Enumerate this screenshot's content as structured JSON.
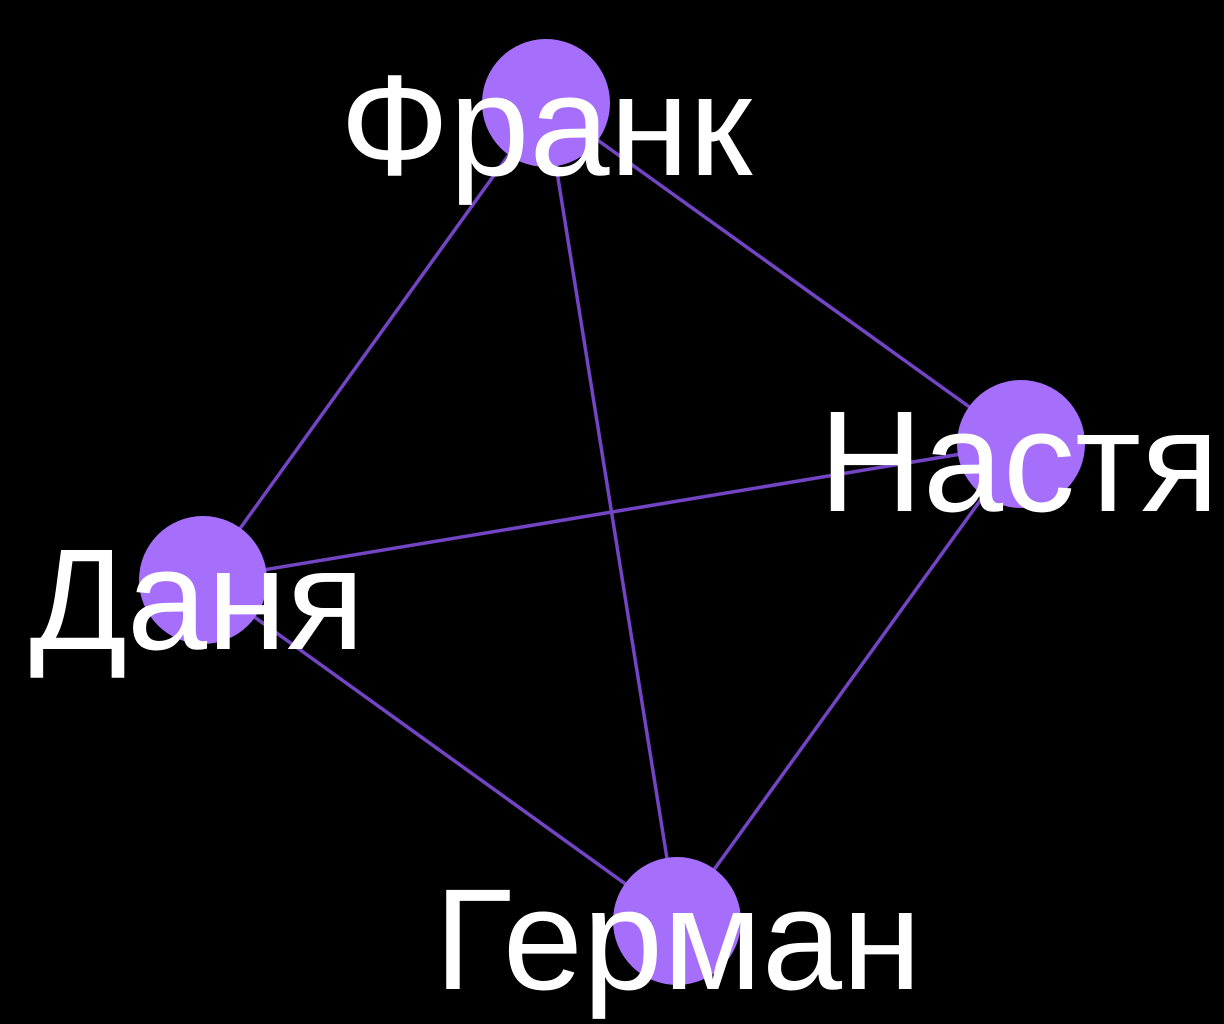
{
  "graph": {
    "node_color": "#a66ffb",
    "edge_color": "#7344c4",
    "background": "#000000",
    "nodes": [
      {
        "id": "frank",
        "label": "Франк"
      },
      {
        "id": "nastya",
        "label": "Настя"
      },
      {
        "id": "danya",
        "label": "Даня"
      },
      {
        "id": "german",
        "label": "Герман"
      }
    ],
    "edges": [
      {
        "source": "frank",
        "target": "danya"
      },
      {
        "source": "frank",
        "target": "nastya"
      },
      {
        "source": "frank",
        "target": "german"
      },
      {
        "source": "danya",
        "target": "nastya"
      },
      {
        "source": "danya",
        "target": "german"
      },
      {
        "source": "nastya",
        "target": "german"
      }
    ]
  }
}
